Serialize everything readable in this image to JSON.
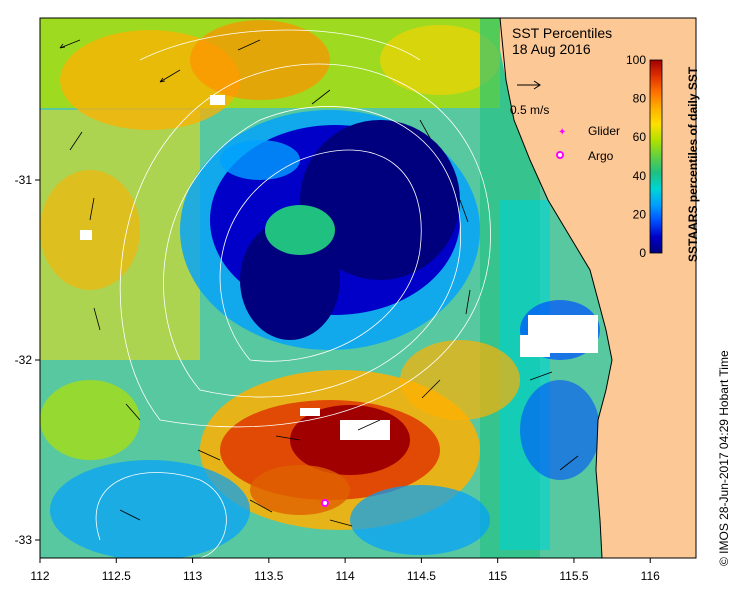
{
  "title": "SST Percentiles",
  "date": "18 Aug 2016",
  "scale_label": "0.5 m/s",
  "legend": {
    "glider": "Glider",
    "argo": "Argo"
  },
  "colorbar": {
    "label": "SSTAARS percentiles of daily SST",
    "ticks": [
      "0",
      "20",
      "40",
      "60",
      "80",
      "100"
    ],
    "colors": [
      "#00007f",
      "#0000c8",
      "#0050ff",
      "#00a0ff",
      "#00d4d4",
      "#20c080",
      "#60d040",
      "#b0e000",
      "#ffe000",
      "#ffb000",
      "#ff7000",
      "#e03000",
      "#a00000"
    ]
  },
  "axes": {
    "x_ticks": [
      "112",
      "112.5",
      "113",
      "113.5",
      "114",
      "114.5",
      "115",
      "115.5",
      "116"
    ],
    "y_ticks": [
      "-31",
      "-32",
      "-33"
    ],
    "xlim": [
      112,
      116.3
    ],
    "ylim": [
      -33.1,
      -30.1
    ]
  },
  "credit": "© IMOS 28-Jun-2017 04:29 Hobart Time",
  "colors": {
    "land": "#fcc896",
    "glider_marker": "#ff00ff",
    "argo_marker": "#ff00ff"
  }
}
